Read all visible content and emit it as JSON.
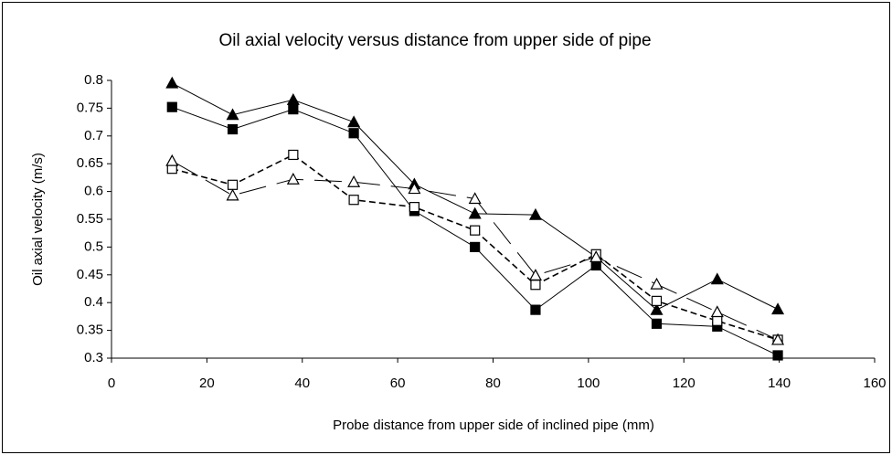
{
  "chart_data": {
    "type": "line",
    "title": "Oil axial velocity versus distance from upper side of pipe",
    "x_label": "Probe distance from upper side of inclined pipe (mm)",
    "y_label": "Oil axial velocity (m/s)",
    "x": [
      12.7,
      25.4,
      38.1,
      50.8,
      63.5,
      76.2,
      88.9,
      101.6,
      114.3,
      127,
      139.7
    ],
    "series": [
      {
        "color": "#000000",
        "marker": "triangle-filled",
        "dash": "solid",
        "values": [
          0.795,
          0.738,
          0.765,
          0.725,
          0.613,
          0.56,
          0.558,
          0.482,
          0.387,
          0.442,
          0.388
        ]
      },
      {
        "color": "#000000",
        "marker": "square-filled",
        "dash": "solid",
        "values": [
          0.752,
          0.712,
          0.748,
          0.705,
          0.565,
          0.5,
          0.387,
          0.467,
          0.362,
          0.357,
          0.305
        ]
      },
      {
        "color": "#000000",
        "marker": "square-open",
        "dash": "dashed",
        "values": [
          0.641,
          0.612,
          0.666,
          0.585,
          0.572,
          0.53,
          0.432,
          0.487,
          0.403,
          0.367,
          0.333
        ]
      },
      {
        "color": "#000000",
        "marker": "triangle-open",
        "dash": "long-dash",
        "values": [
          0.655,
          0.593,
          0.622,
          0.617,
          0.605,
          0.587,
          0.449,
          0.482,
          0.433,
          0.383,
          0.333
        ]
      }
    ],
    "xlim": [
      0,
      160
    ],
    "xticks": [
      0,
      20,
      40,
      60,
      80,
      100,
      120,
      140,
      160
    ],
    "ylim": [
      0.3,
      0.8
    ],
    "yticks": [
      0.3,
      0.35,
      0.4,
      0.45,
      0.5,
      0.55,
      0.6,
      0.65,
      0.7,
      0.75,
      0.8
    ],
    "grid": false
  }
}
